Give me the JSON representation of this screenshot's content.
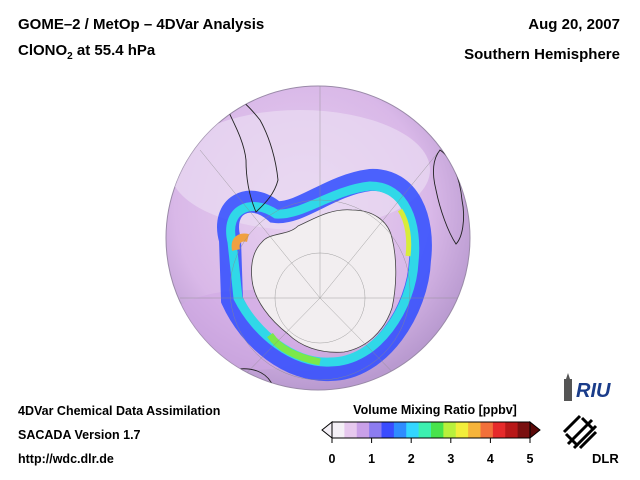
{
  "header": {
    "title_line1": "GOME–2 / MetOp – 4DVar Analysis",
    "species": "ClONO",
    "species_subscript": "2",
    "pressure_level": " at 55.4 hPa",
    "date": "Aug 20, 2007",
    "region": "Southern Hemisphere"
  },
  "footer": {
    "line1": "4DVar Chemical Data Assimilation",
    "line2": "SACADA Version 1.7",
    "line3": "http://wdc.dlr.de"
  },
  "colorbar": {
    "title": "Volume Mixing Ratio [ppbv]",
    "ticks": [
      "0",
      "1",
      "2",
      "3",
      "4",
      "5"
    ],
    "range": [
      0,
      5
    ],
    "colors": [
      "#f4f0f6",
      "#e6c8ee",
      "#c9a0e8",
      "#8c7cf0",
      "#3a4cff",
      "#2f8cff",
      "#33d6ff",
      "#3cf0b0",
      "#48e34c",
      "#b8f03c",
      "#f2ee3a",
      "#f6b43a",
      "#f2703a",
      "#e62a2a",
      "#b81818",
      "#7a1010"
    ]
  },
  "logos": {
    "riu": "RIU",
    "dlr": "DLR"
  },
  "map": {
    "projection": "orthographic, south polar view",
    "field_colors": {
      "background": "#dcc0e8",
      "antarctica": "#f2eef0",
      "vortex_edge": "#3a52ff",
      "max": "#f07a3a"
    }
  }
}
